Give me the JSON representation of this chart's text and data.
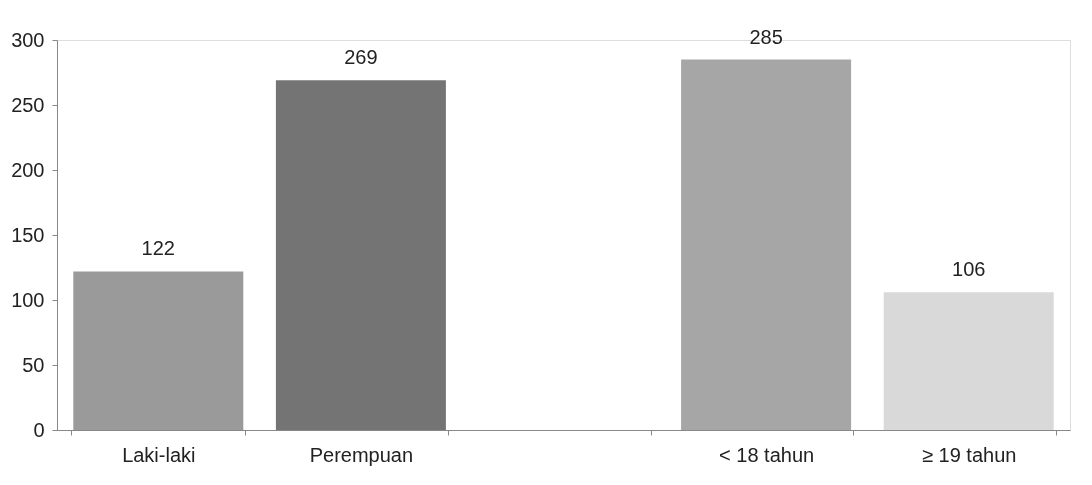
{
  "chart_data": {
    "type": "bar",
    "categories": [
      "Laki-laki",
      "Perempuan",
      null,
      "< 18 tahun",
      "≥ 19 tahun"
    ],
    "values": [
      122,
      269,
      null,
      285,
      106
    ],
    "colors": [
      "#9a9a9a",
      "#747474",
      "#ffffff",
      "#a6a6a6",
      "#d9d9d9"
    ],
    "ylim": [
      0,
      300
    ],
    "yticks": [
      0,
      50,
      100,
      150,
      200,
      250,
      300
    ],
    "data_labels": true,
    "grid": false
  }
}
